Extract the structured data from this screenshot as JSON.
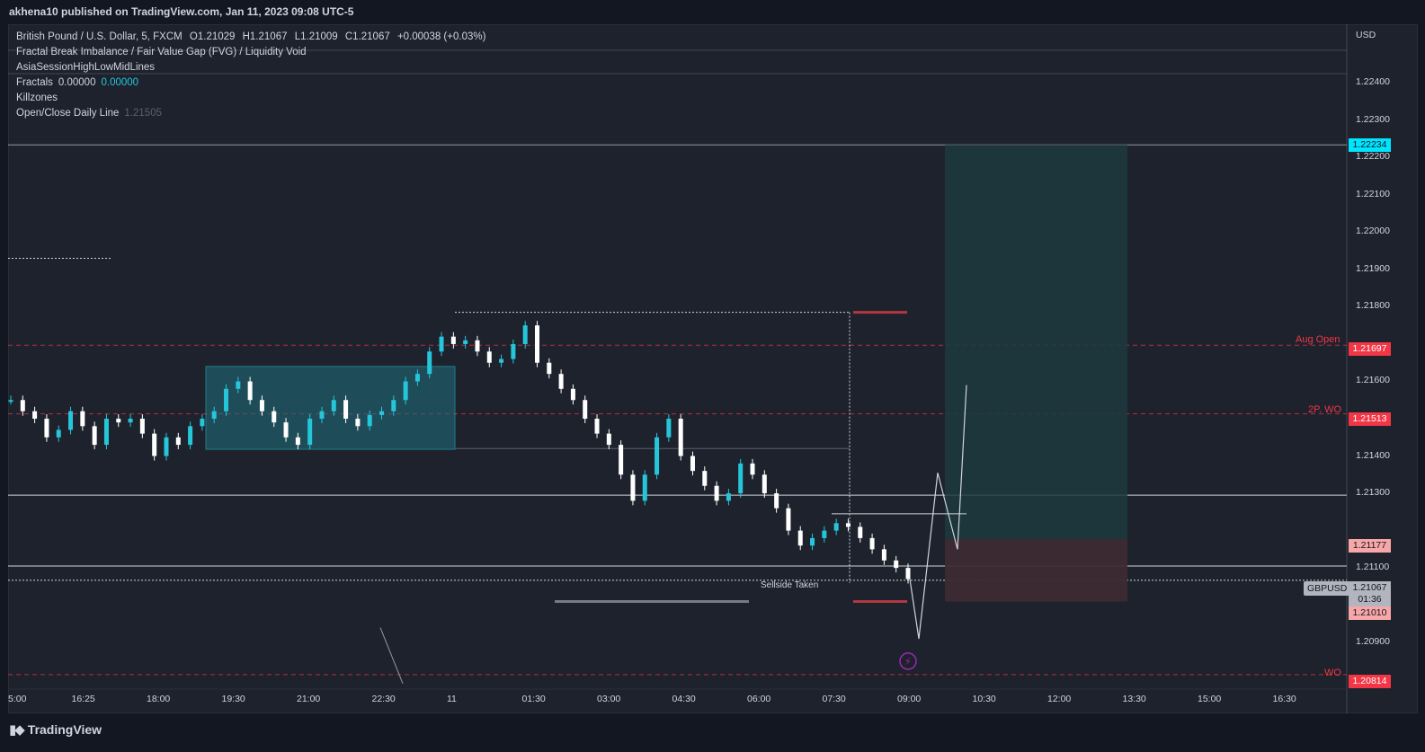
{
  "header": {
    "publisher_line": "akhena10 published on TradingView.com, Jan 11, 2023 09:08 UTC-5"
  },
  "legend": {
    "symbol": "British Pound / U.S. Dollar, 5, FXCM",
    "ohlc": {
      "o": "O1.21029",
      "h": "H1.21067",
      "l": "L1.21009",
      "c": "C1.21067",
      "chg": "+0.00038 (+0.03%)"
    },
    "indicator1": "Fractal Break Imbalance / Fair Value Gap (FVG) / Liquidity Void",
    "indicator2": "AsiaSessionHighLowMidLines",
    "fractals_label": "Fractals",
    "fractals_val1": "0.00000",
    "fractals_val2": "0.00000",
    "killzones": "Killzones",
    "openclose_label": "Open/Close Daily Line",
    "openclose_val": "1.21505"
  },
  "axis": {
    "currency": "USD",
    "price_labels": [
      "1.22400",
      "1.22300",
      "1.22200",
      "1.22100",
      "1.22000",
      "1.21900",
      "1.21800",
      "1.21600",
      "1.21400",
      "1.21300",
      "1.21100",
      "1.20900"
    ],
    "time_labels": [
      "5:00",
      "16:25",
      "18:00",
      "19:30",
      "21:00",
      "22:30",
      "11",
      "01:30",
      "03:00",
      "04:30",
      "06:00",
      "07:30",
      "09:00",
      "10:30",
      "12:00",
      "13:30",
      "15:00",
      "16:30"
    ]
  },
  "price_tags": {
    "target": "1.22234",
    "aug_open": "1.21697",
    "two_p_wo": "1.21513",
    "entry": "1.21177",
    "stop": "1.21010",
    "wo": "1.20814"
  },
  "line_labels": {
    "aug_open": "Aug Open",
    "two_p_wo": "2P. WO",
    "wo": "WO"
  },
  "last_price": {
    "symbol": "GBPUSD",
    "price": "1.21067",
    "countdown": "01:36"
  },
  "annotation": {
    "sellside": "Sellside Taken"
  },
  "footer": {
    "brand": "TradingView"
  },
  "colors": {
    "background": "#1e222d",
    "bull_candle": "#26c6da",
    "bear_candle": "#ffffff",
    "red_line": "#f23645",
    "target_zone": "#1c3a3e",
    "stop_zone": "#3d2b33",
    "asia_box": "#1f6f7c"
  },
  "chart_data": {
    "type": "candlestick",
    "symbol": "GBPUSD",
    "timeframe": "5",
    "ylim": [
      1.2078,
      1.2255
    ],
    "x_labels": [
      "5:00",
      "16:25",
      "18:00",
      "19:30",
      "21:00",
      "22:30",
      "11",
      "01:30",
      "03:00",
      "04:30",
      "06:00",
      "07:30",
      "09:00",
      "10:30",
      "12:00",
      "13:30",
      "15:00",
      "16:30"
    ],
    "levels": [
      {
        "name": "Aug Open",
        "value": 1.21697
      },
      {
        "name": "2P. WO",
        "value": 1.21513
      },
      {
        "name": "WO",
        "value": 1.20814
      },
      {
        "name": "target",
        "value": 1.22234
      },
      {
        "name": "entry",
        "value": 1.21177
      },
      {
        "name": "stop",
        "value": 1.2101
      },
      {
        "name": "last",
        "value": 1.21067
      }
    ],
    "price_path": [
      1.2155,
      1.2152,
      1.215,
      1.2145,
      1.2147,
      1.2152,
      1.2148,
      1.2143,
      1.215,
      1.2149,
      1.215,
      1.2146,
      1.214,
      1.2145,
      1.2143,
      1.2148,
      1.215,
      1.2152,
      1.2158,
      1.216,
      1.2155,
      1.2152,
      1.2149,
      1.2145,
      1.2143,
      1.215,
      1.2152,
      1.2155,
      1.215,
      1.2148,
      1.2151,
      1.2152,
      1.2155,
      1.216,
      1.2162,
      1.2168,
      1.2172,
      1.217,
      1.2171,
      1.2168,
      1.2165,
      1.2166,
      1.217,
      1.2175,
      1.2165,
      1.2162,
      1.2158,
      1.2155,
      1.215,
      1.2146,
      1.2143,
      1.2135,
      1.2128,
      1.2135,
      1.2145,
      1.215,
      1.214,
      1.2136,
      1.2132,
      1.2128,
      1.213,
      1.2138,
      1.2135,
      1.213,
      1.2126,
      1.212,
      1.2116,
      1.2118,
      1.212,
      1.2122,
      1.2121,
      1.2118,
      1.2115,
      1.2112,
      1.211,
      1.2107
    ]
  }
}
